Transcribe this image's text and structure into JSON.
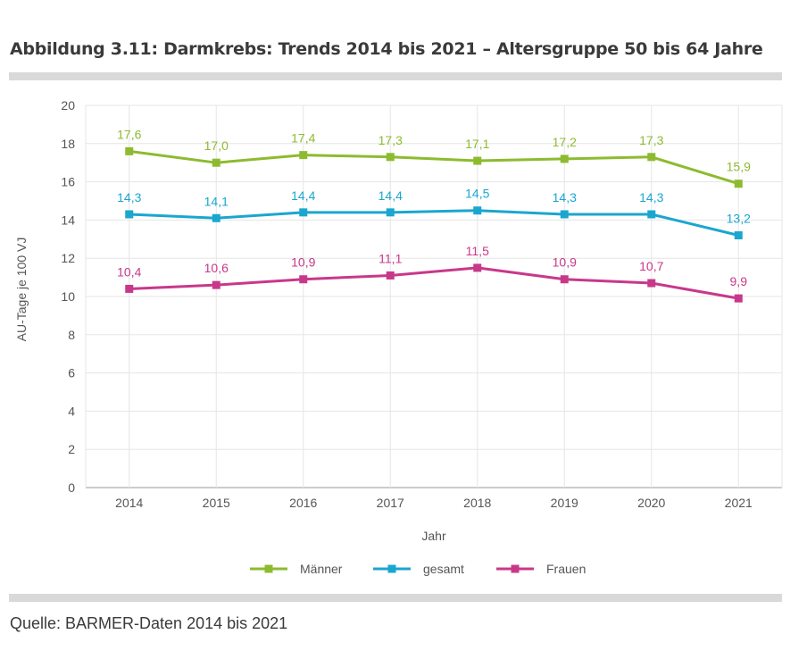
{
  "header": {
    "title": "Abbildung 3.11: Darmkrebs: Trends 2014 bis 2021 – Altersgruppe 50 bis 64 Jahre"
  },
  "footer": {
    "source": "Quelle: BARMER-Daten 2014 bis 2021"
  },
  "chart_data": {
    "type": "line",
    "x": [
      "2014",
      "2015",
      "2016",
      "2017",
      "2018",
      "2019",
      "2020",
      "2021"
    ],
    "xlabel": "Jahr",
    "ylabel": "AU-Tage je 100 VJ",
    "ylim": [
      0,
      20
    ],
    "yticks": [
      0,
      2,
      4,
      6,
      8,
      10,
      12,
      14,
      16,
      18,
      20
    ],
    "grid": true,
    "legend_position": "bottom",
    "series": [
      {
        "name": "Männer",
        "color": "#8dbb2f",
        "values": [
          17.6,
          17.0,
          17.4,
          17.3,
          17.1,
          17.2,
          17.3,
          15.9
        ],
        "labels": [
          "17,6",
          "17,0",
          "17,4",
          "17,3",
          "17,1",
          "17,2",
          "17,3",
          "15,9"
        ]
      },
      {
        "name": "gesamt",
        "color": "#1ba6cf",
        "values": [
          14.3,
          14.1,
          14.4,
          14.4,
          14.5,
          14.3,
          14.3,
          13.2
        ],
        "labels": [
          "14,3",
          "14,1",
          "14,4",
          "14,4",
          "14,5",
          "14,3",
          "14,3",
          "13,2"
        ]
      },
      {
        "name": "Frauen",
        "color": "#c8388a",
        "values": [
          10.4,
          10.6,
          10.9,
          11.1,
          11.5,
          10.9,
          10.7,
          9.9
        ],
        "labels": [
          "10,4",
          "10,6",
          "10,9",
          "11,1",
          "11,5",
          "10,9",
          "10,7",
          "9,9"
        ]
      }
    ]
  }
}
